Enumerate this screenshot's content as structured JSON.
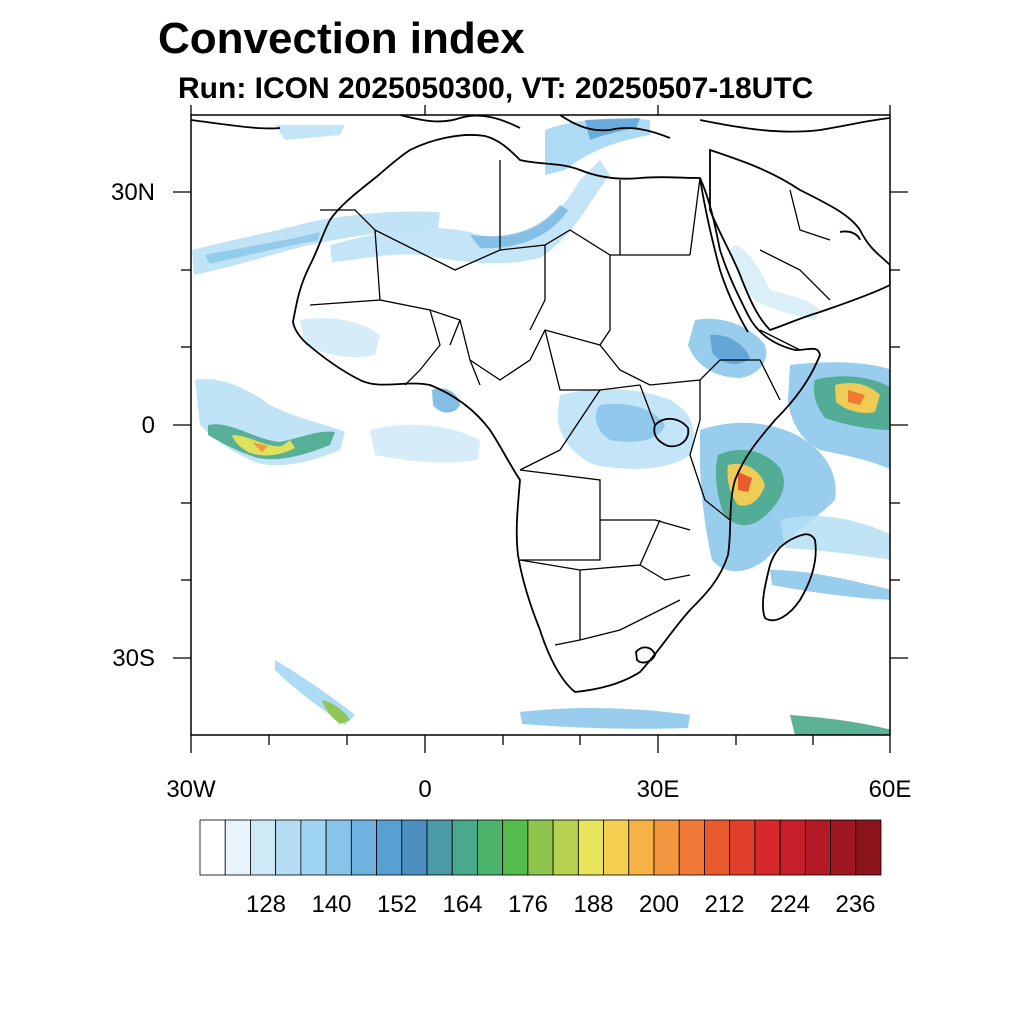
{
  "title": "Convection index",
  "subtitle": "Run: ICON 2025050300,  VT: 20250507-18UTC",
  "map": {
    "region": "Africa",
    "lon_labels": [
      "30W",
      "0",
      "30E",
      "60E"
    ],
    "lat_labels": [
      "30N",
      "0",
      "30S"
    ],
    "colors": {
      "coast": "#000000",
      "frame": "#000000"
    }
  },
  "legend": {
    "labels": [
      "128",
      "140",
      "152",
      "164",
      "176",
      "188",
      "200",
      "212",
      "224",
      "236"
    ],
    "colors": [
      "#ffffff",
      "#e8f4fb",
      "#cfe9f7",
      "#b5def5",
      "#9fd5f3",
      "#87c4ea",
      "#6fb2e0",
      "#5a9fd3",
      "#4c90c2",
      "#4a9aa8",
      "#4aa88c",
      "#4bb46a",
      "#55bc4e",
      "#8dc54d",
      "#b6d24e",
      "#e7e35a",
      "#f5cf52",
      "#f6b348",
      "#f4963e",
      "#f07a36",
      "#ea5a2f",
      "#e0402c",
      "#d7282b",
      "#c71f29",
      "#b31a25",
      "#9f1720",
      "#8b141b"
    ]
  },
  "chart_data": {
    "type": "heatmap",
    "title": "Convection index",
    "subtitle": "Run: ICON 2025050300,  VT: 20250507-18UTC",
    "x_axis": {
      "ticks": [
        "30W",
        "0",
        "30E",
        "60E"
      ],
      "range_deg": [
        -30,
        60
      ]
    },
    "y_axis": {
      "ticks": [
        "30N",
        "0",
        "30S"
      ],
      "range_deg": [
        -40,
        40
      ]
    },
    "colorbar": {
      "tick_labels": [
        128,
        140,
        152,
        164,
        176,
        188,
        200,
        212,
        224,
        236
      ]
    },
    "highlights": [
      {
        "region": "Equatorial Atlantic near 24W-18W, 1S",
        "peak_approx": 200
      },
      {
        "region": "Tanzania / Mozambique coast 38E-41E, 2S-10S",
        "peak_approx": 215
      },
      {
        "region": "Indian Ocean 50E-58E, 2N-2S",
        "peak_approx": 212
      },
      {
        "region": "South Atlantic near 21W, 37S",
        "peak_approx": 180
      }
    ]
  }
}
